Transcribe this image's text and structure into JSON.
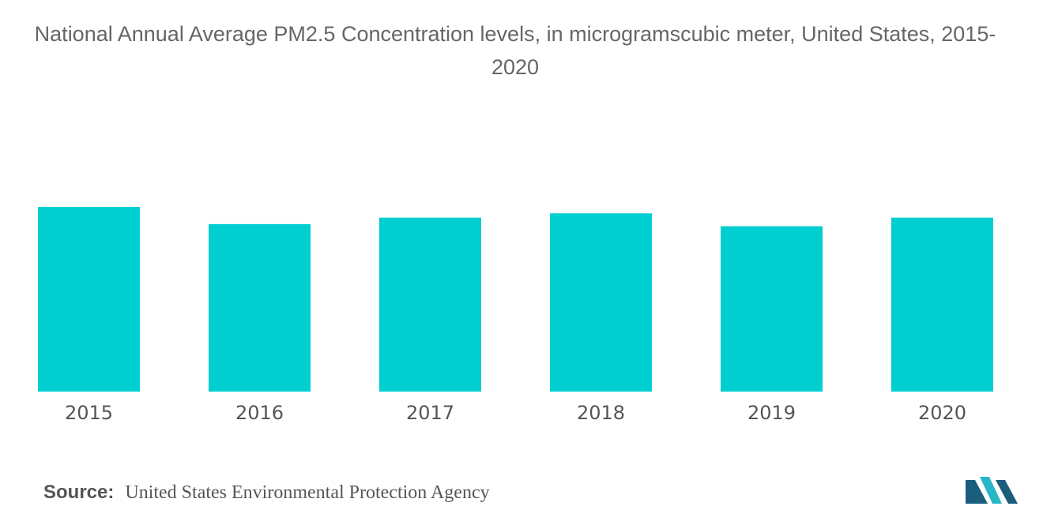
{
  "title": "National Annual Average PM2.5 Concentration levels, in microgramscubic meter, United States, 2015-2020",
  "source": {
    "label": "Source:",
    "text": "United States Environmental Protection Agency"
  },
  "logo": {
    "icon": "mordor-intelligence-logo-icon",
    "colors": [
      "#1b5d7c",
      "#27b7c6"
    ]
  },
  "chart_data": {
    "type": "bar",
    "title": "National Annual Average PM2.5 Concentration levels, in microgramscubic meter, United States, 2015-2020",
    "xlabel": "",
    "ylabel": "",
    "categories": [
      "2015",
      "2016",
      "2017",
      "2018",
      "2019",
      "2020"
    ],
    "values": [
      8.6,
      7.8,
      8.1,
      8.3,
      7.7,
      8.1
    ],
    "ylim": [
      0,
      10
    ],
    "grid": false,
    "bar_color": "#00ced1"
  }
}
